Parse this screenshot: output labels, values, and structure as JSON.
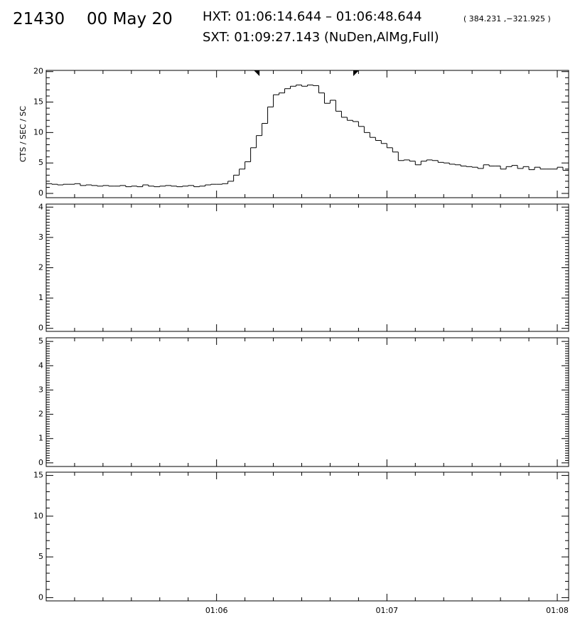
{
  "header": {
    "event": "21430",
    "date": "00 May 20",
    "hxt": "HXT: 01:06:14.644 – 01:06:48.644",
    "position": "( 384.231 ,−321.925 )",
    "sxt": "SXT: 01:09:27.143 (NuDen,AlMg,Full)"
  },
  "chart_data": [
    {
      "type": "histogram",
      "y_label": "CTS / SEC / SC",
      "color": "#000000",
      "bins": [
        3900,
        3902,
        3904,
        3906,
        3908,
        3910,
        3912,
        3914,
        3916,
        3918,
        3920,
        3922,
        3924,
        3926,
        3928,
        3930,
        3932,
        3934,
        3936,
        3938,
        3940,
        3942,
        3944,
        3946,
        3948,
        3950,
        3952,
        3954,
        3956,
        3958,
        3960,
        3962,
        3964,
        3966,
        3968,
        3970,
        3972,
        3974,
        3976,
        3978,
        3980,
        3982,
        3984,
        3986,
        3988,
        3990,
        3992,
        3994,
        3996,
        3998,
        4000,
        4002,
        4004,
        4006,
        4008,
        4010,
        4012,
        4014,
        4016,
        4018,
        4020,
        4022,
        4024,
        4026,
        4028,
        4030,
        4032,
        4034,
        4036,
        4038,
        4040,
        4042,
        4044,
        4046,
        4048,
        4050,
        4052,
        4054,
        4056,
        4058,
        4060,
        4062,
        4064,
        4066,
        4068,
        4070,
        4072,
        4074,
        4076,
        4078,
        4080,
        4082,
        4084
      ],
      "counts": [
        1.6,
        1.5,
        1.4,
        1.5,
        1.5,
        1.6,
        1.3,
        1.4,
        1.3,
        1.2,
        1.3,
        1.2,
        1.2,
        1.3,
        1.1,
        1.2,
        1.1,
        1.4,
        1.2,
        1.1,
        1.2,
        1.3,
        1.2,
        1.1,
        1.2,
        1.3,
        1.1,
        1.2,
        1.4,
        1.5,
        1.5,
        1.6,
        2.0,
        3.0,
        4.0,
        5.2,
        7.5,
        9.5,
        11.5,
        14.2,
        16.2,
        16.5,
        17.2,
        17.6,
        17.8,
        17.6,
        17.8,
        17.7,
        16.5,
        14.8,
        15.3,
        13.5,
        12.5,
        12.0,
        11.8,
        11.0,
        10.0,
        9.2,
        8.7,
        8.2,
        7.5,
        6.8,
        5.4,
        5.5,
        5.3,
        4.7,
        5.3,
        5.5,
        5.4,
        5.1,
        5.0,
        4.8,
        4.7,
        4.5,
        4.4,
        4.3,
        4.1,
        4.7,
        4.5,
        4.5,
        4.0,
        4.4,
        4.6,
        4.1,
        4.4,
        3.9,
        4.3,
        4.0,
        4.0,
        4.0,
        4.3,
        3.8
      ],
      "markers": [
        3974.644,
        4008.644
      ],
      "xlim": [
        3900,
        4084
      ],
      "xticks": [
        {
          "value": 3960,
          "label": "01:06"
        },
        {
          "value": 4020,
          "label": "01:07"
        },
        {
          "value": 4080,
          "label": "01:08"
        }
      ],
      "xminor": 6,
      "ylim": [
        -0.7,
        20.2
      ],
      "yticks": [
        0,
        5,
        10,
        15,
        20
      ],
      "yminor": 5
    },
    {
      "type": "histogram",
      "xlim": [
        3900,
        4084
      ],
      "xticks": [
        {
          "value": 3960,
          "label": "01:06"
        },
        {
          "value": 4020,
          "label": "01:07"
        },
        {
          "value": 4080,
          "label": "01:08"
        }
      ],
      "xminor": 6,
      "ylim": [
        -0.1,
        4.1
      ],
      "yticks": [
        0,
        1,
        2,
        3,
        4
      ],
      "yminor": 10
    },
    {
      "type": "histogram",
      "xlim": [
        3900,
        4084
      ],
      "xticks": [
        {
          "value": 3960,
          "label": "01:06"
        },
        {
          "value": 4020,
          "label": "01:07"
        },
        {
          "value": 4080,
          "label": "01:08"
        }
      ],
      "xminor": 6,
      "ylim": [
        -0.15,
        5.15
      ],
      "yticks": [
        0,
        1,
        2,
        3,
        4,
        5
      ],
      "yminor": 10
    },
    {
      "type": "histogram",
      "show_xtick_labels": true,
      "xlim": [
        3900,
        4084
      ],
      "xticks": [
        {
          "value": 3960,
          "label": "01:06"
        },
        {
          "value": 4020,
          "label": "01:07"
        },
        {
          "value": 4080,
          "label": "01:08"
        }
      ],
      "xminor": 6,
      "ylim": [
        -0.4,
        15.4
      ],
      "yticks": [
        0,
        5,
        10,
        15
      ],
      "yminor": 5
    }
  ]
}
